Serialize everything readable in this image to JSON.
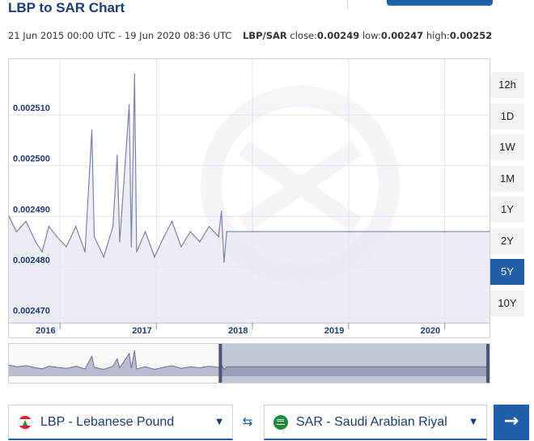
{
  "page": {
    "title": "LBP to SAR Chart"
  },
  "summary": {
    "range_text": "21 Jun 2015 00:00 UTC - 19 Jun 2020 08:36 UTC",
    "pair": "LBP/SAR",
    "close_label": "close:",
    "close_value": "0.00249",
    "low_label": "low:",
    "low_value": "0.00247",
    "high_label": "high:",
    "high_value": "0.00252"
  },
  "range_buttons": [
    "12h",
    "1D",
    "1W",
    "1M",
    "1Y",
    "2Y",
    "5Y",
    "10Y"
  ],
  "active_range": "5Y",
  "converter": {
    "from_label": "LBP - Lebanese Pound",
    "to_label": "SAR - Saudi Arabian Riyal",
    "from_flag": "lebanon-flag",
    "to_flag": "saudi-flag",
    "swap_icon": "swap-arrows-icon",
    "go_icon": "arrow-right-icon"
  },
  "colors": {
    "brand": "#1f5fa8",
    "series_line": "#7d82a8",
    "series_fill": "#e7e8f2",
    "navigator_fill": "#5c6990"
  },
  "chart_data": {
    "type": "line",
    "x_start": "2015-06-21",
    "x_end": "2020-06-19",
    "x_ticks": [
      "2016",
      "2017",
      "2018",
      "2019",
      "2020"
    ],
    "y_ticks": [
      "0.002510",
      "0.002500",
      "0.002490",
      "0.002480",
      "0.002470"
    ],
    "ylim": [
      0.002469,
      0.002521
    ],
    "grid": true,
    "series": [
      {
        "points": [
          [
            "2015-06-21",
            0.00249
          ],
          [
            "2015-07-20",
            0.002487
          ],
          [
            "2015-08-25",
            0.002489
          ],
          [
            "2015-09-30",
            0.002485
          ],
          [
            "2015-10-25",
            0.002483
          ],
          [
            "2015-11-20",
            0.002488
          ],
          [
            "2015-12-20",
            0.002486
          ],
          [
            "2016-01-25",
            0.002484
          ],
          [
            "2016-03-01",
            0.002488
          ],
          [
            "2016-04-05",
            0.002483
          ],
          [
            "2016-05-01",
            0.002507
          ],
          [
            "2016-05-10",
            0.002486
          ],
          [
            "2016-06-15",
            0.002482
          ],
          [
            "2016-07-20",
            0.002488
          ],
          [
            "2016-08-05",
            0.002502
          ],
          [
            "2016-08-15",
            0.002485
          ],
          [
            "2016-09-20",
            0.002512
          ],
          [
            "2016-09-28",
            0.002484
          ],
          [
            "2016-10-10",
            0.002518
          ],
          [
            "2016-10-18",
            0.002483
          ],
          [
            "2016-11-20",
            0.002487
          ],
          [
            "2016-12-25",
            0.002482
          ],
          [
            "2017-01-30",
            0.002486
          ],
          [
            "2017-03-01",
            0.002489
          ],
          [
            "2017-04-05",
            0.002484
          ],
          [
            "2017-05-10",
            0.002487
          ],
          [
            "2017-06-15",
            0.002485
          ],
          [
            "2017-07-20",
            0.002488
          ],
          [
            "2017-08-25",
            0.002486
          ],
          [
            "2017-09-05",
            0.002491
          ],
          [
            "2017-09-15",
            0.002481
          ],
          [
            "2017-09-25",
            0.002487
          ],
          [
            "2018-01-01",
            0.002487
          ],
          [
            "2019-01-01",
            0.002487
          ],
          [
            "2020-01-01",
            0.002487
          ],
          [
            "2020-06-19",
            0.002487
          ]
        ]
      }
    ]
  }
}
